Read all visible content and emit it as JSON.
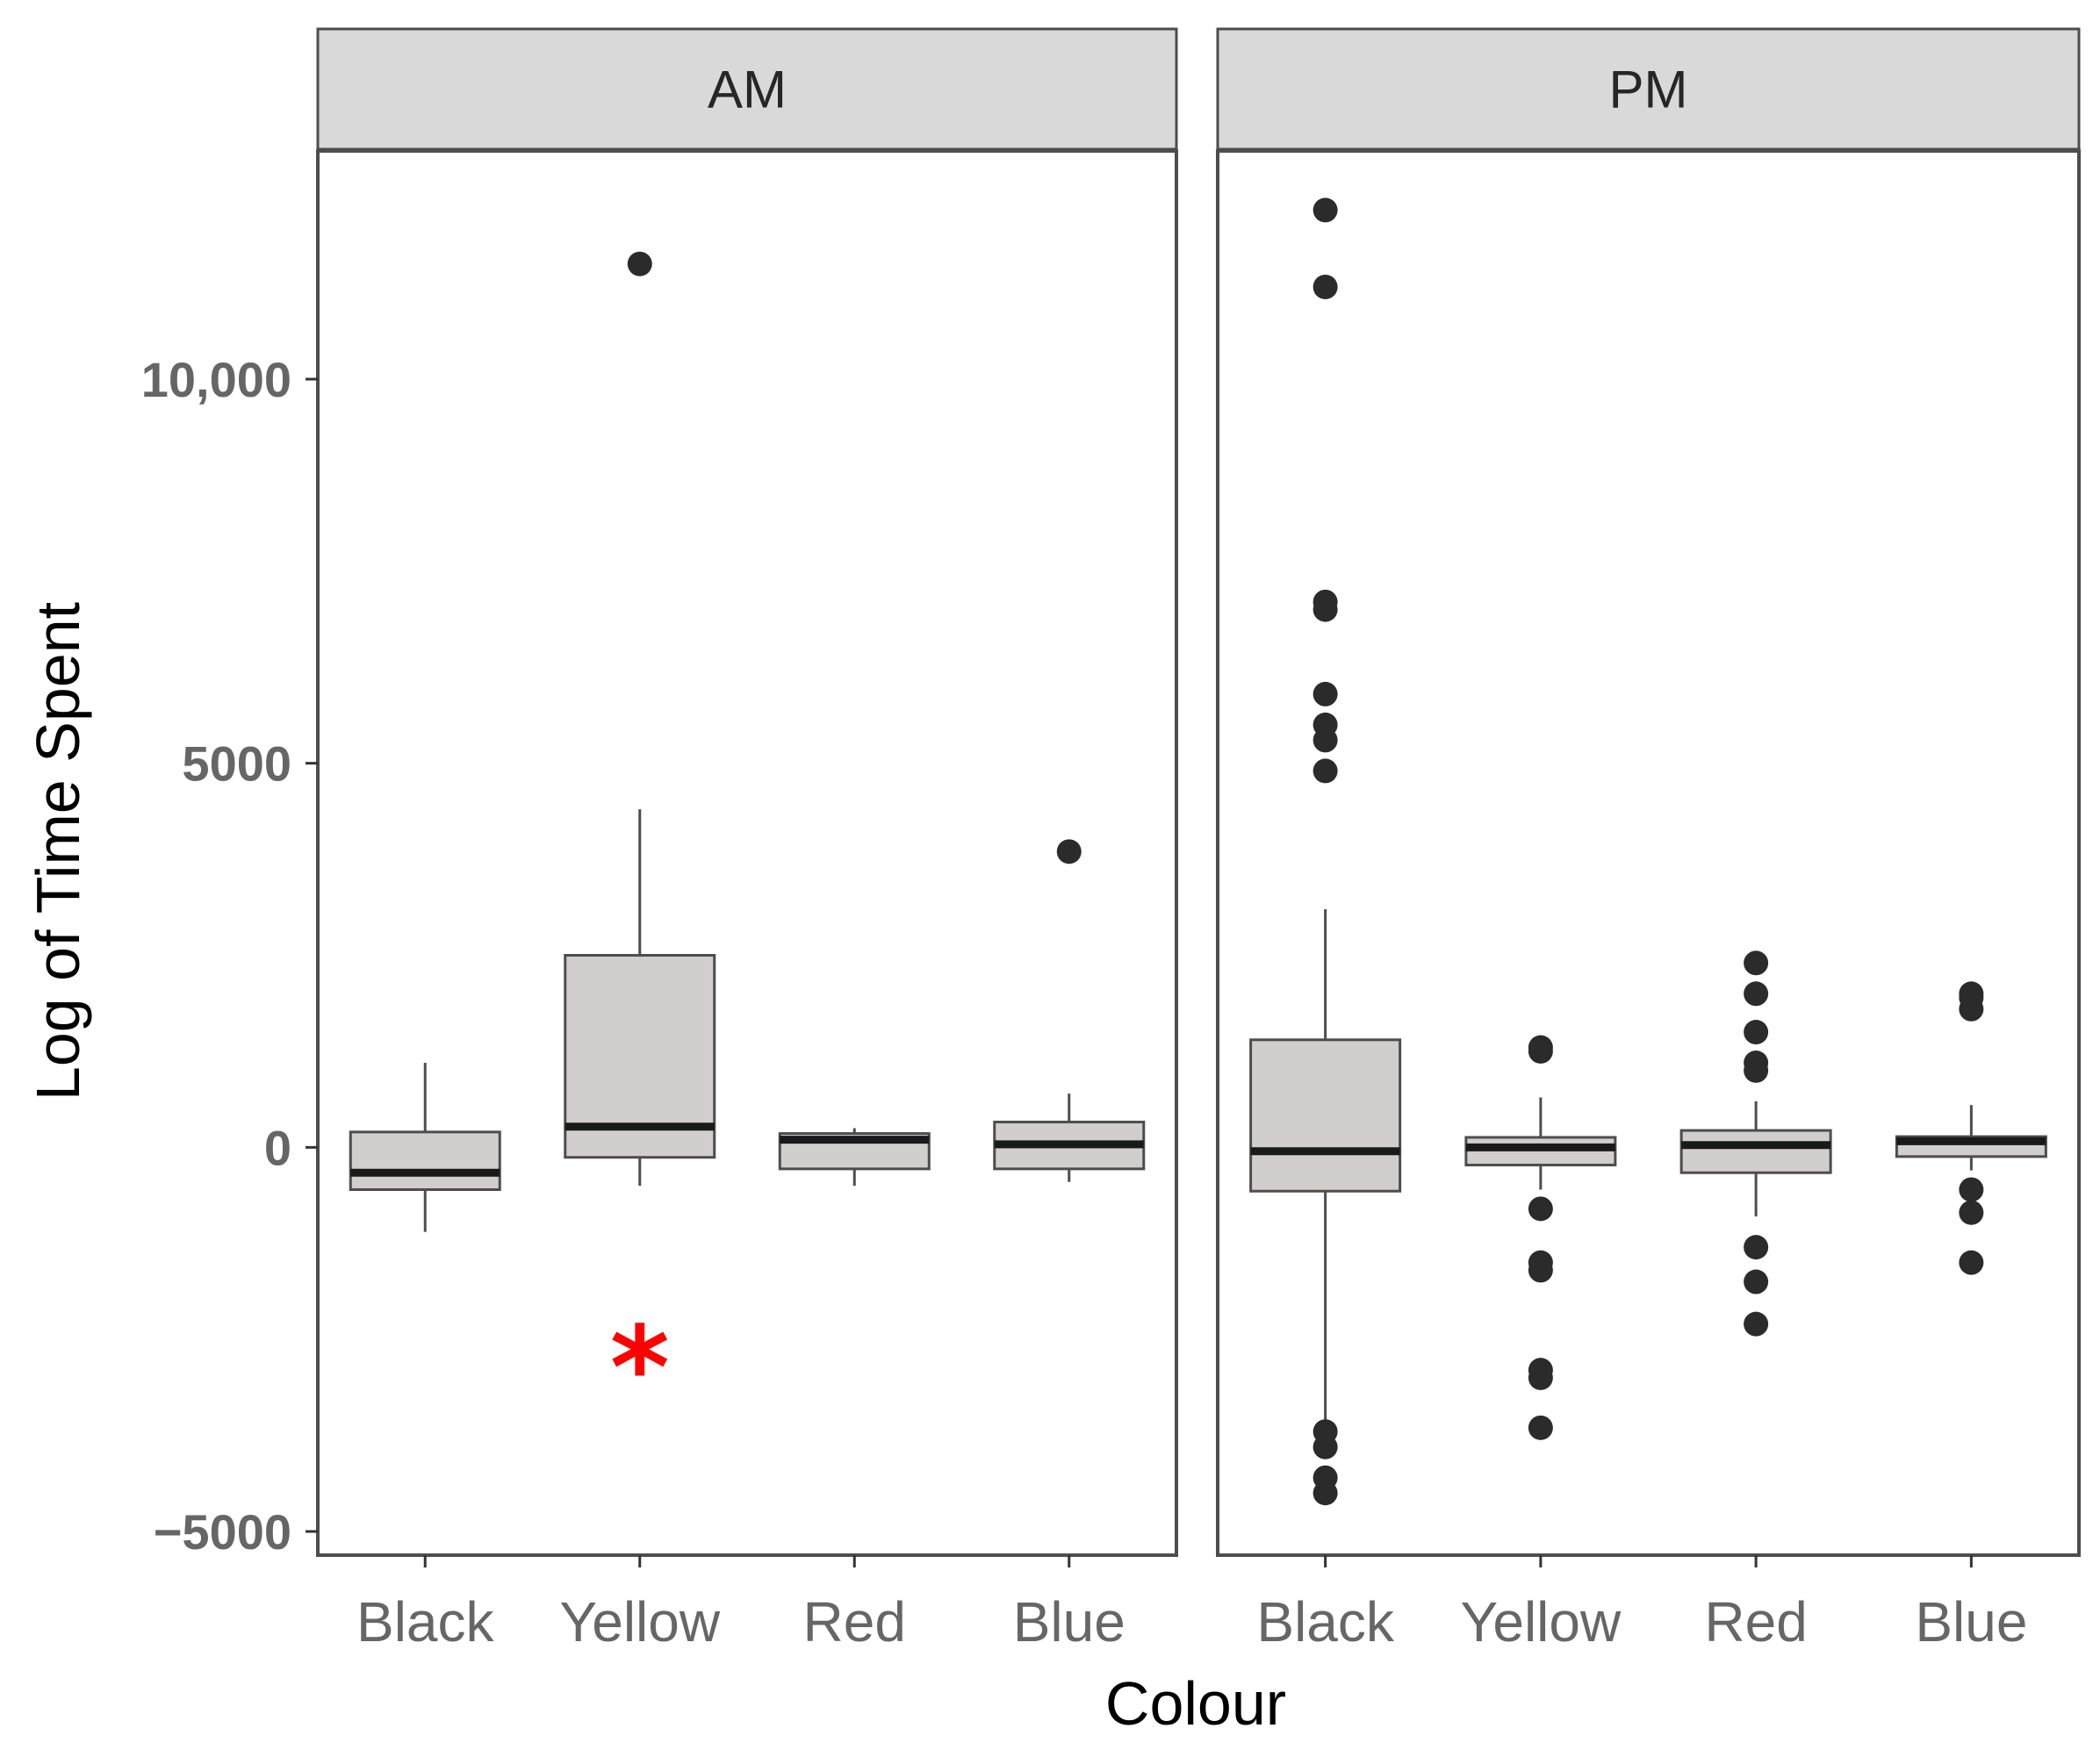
{
  "chart_data": {
    "type": "boxplot",
    "xlabel": "Colour",
    "ylabel": "Log of Time Spent",
    "ylim": [
      -5000,
      12500
    ],
    "yticks": [
      {
        "value": 10000,
        "label": "10,000"
      },
      {
        "value": 5000,
        "label": "5000"
      },
      {
        "value": 0,
        "label": "0"
      },
      {
        "value": -5000,
        "label": "−5000"
      }
    ],
    "categories": [
      "Black",
      "Yellow",
      "Red",
      "Blue"
    ],
    "facets": [
      {
        "label": "AM",
        "boxes": [
          {
            "category": "Black",
            "q1": -550,
            "median": -330,
            "q3": 200,
            "whisker_low": -1100,
            "whisker_high": 1100,
            "outliers": []
          },
          {
            "category": "Yellow",
            "q1": -130,
            "median": 270,
            "q3": 2500,
            "whisker_low": -500,
            "whisker_high": 4400,
            "outliers": [
              11500
            ]
          },
          {
            "category": "Red",
            "q1": -280,
            "median": 100,
            "q3": 180,
            "whisker_low": -500,
            "whisker_high": 250,
            "outliers": []
          },
          {
            "category": "Blue",
            "q1": -280,
            "median": 40,
            "q3": 330,
            "whisker_low": -450,
            "whisker_high": 700,
            "outliers": [
              3850
            ]
          }
        ],
        "annotations": [
          {
            "category": "Yellow",
            "y": -2700,
            "text": "*",
            "color": "#ff0000"
          }
        ]
      },
      {
        "label": "PM",
        "boxes": [
          {
            "category": "Black",
            "q1": -570,
            "median": -50,
            "q3": 1400,
            "whisker_low": -3800,
            "whisker_high": 3100,
            "outliers": [
              12200,
              11200,
              7100,
              7000,
              5900,
              5500,
              5300,
              4900,
              -3700,
              -3900,
              -4300,
              -4500
            ]
          },
          {
            "category": "Yellow",
            "q1": -230,
            "median": 0,
            "q3": 130,
            "whisker_low": -550,
            "whisker_high": 650,
            "outliers": [
              1250,
              1300,
              -800,
              -1500,
              -1600,
              -2900,
              -3000,
              -3650
            ]
          },
          {
            "category": "Red",
            "q1": -330,
            "median": 30,
            "q3": 220,
            "whisker_low": -900,
            "whisker_high": 600,
            "outliers": [
              2400,
              2000,
              1500,
              1100,
              1000,
              -1300,
              -1750,
              -2300
            ]
          },
          {
            "category": "Blue",
            "q1": -120,
            "median": 80,
            "q3": 140,
            "whisker_low": -300,
            "whisker_high": 550,
            "outliers": [
              1950,
              2000,
              1800,
              -550,
              -850,
              -1500
            ]
          }
        ],
        "annotations": []
      }
    ],
    "colors": {
      "box_fill": "#d2cecd",
      "box_stroke": "#4d4d4d",
      "median": "#1a1a1a",
      "outlier": "#2b2b2b",
      "strip_fill": "#d9d9d9",
      "grid": "#ebebeb",
      "panel_border": "#4d4d4d"
    }
  }
}
